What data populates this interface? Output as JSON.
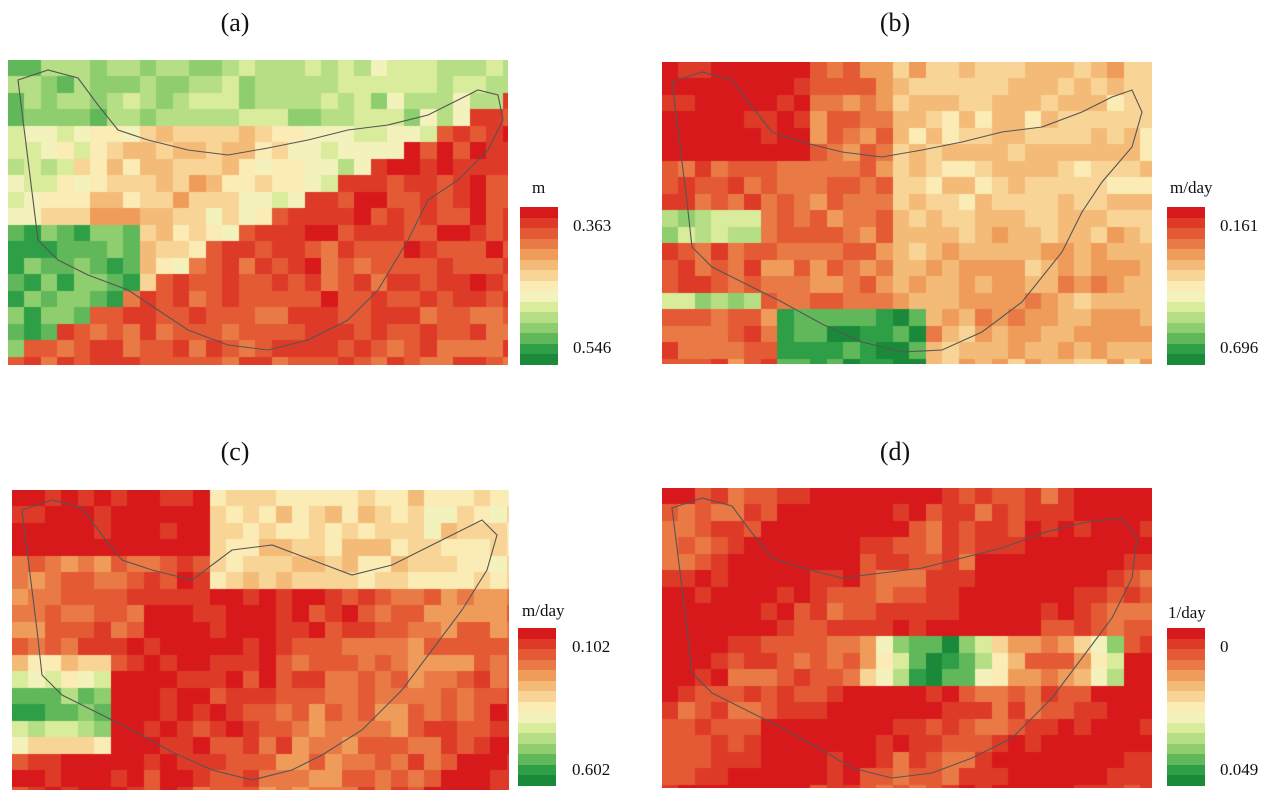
{
  "panels": [
    {
      "label": "(a)",
      "legend": {
        "unit": "m",
        "top": "0.363",
        "bottom": "0.546"
      }
    },
    {
      "label": "(b)",
      "legend": {
        "unit": "m/day",
        "top": "0.161",
        "bottom": "0.696"
      }
    },
    {
      "label": "(c)",
      "legend": {
        "unit": "m/day",
        "top": "0.102",
        "bottom": "0.602"
      }
    },
    {
      "label": "(d)",
      "legend": {
        "unit": "1/day",
        "top": "0",
        "bottom": "0.049"
      }
    }
  ],
  "colors": {
    "ramp": [
      "#d7191c",
      "#de3a28",
      "#e45a35",
      "#e97a45",
      "#ef9c5a",
      "#f4bb78",
      "#f8d596",
      "#fbebb5",
      "#f3f2bc",
      "#d8ec9c",
      "#b6de84",
      "#8fce6e",
      "#60b85a",
      "#2e9f47",
      "#1a8a3a"
    ]
  }
}
